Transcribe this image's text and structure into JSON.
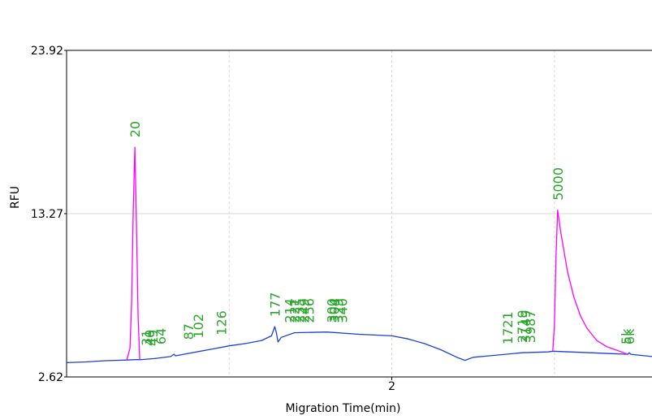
{
  "colors": {
    "baseline": "#1f3fd6",
    "peak": "#ff00ff",
    "label": "#2aa52a",
    "grid": "#d9d9d9",
    "axis": "#000000"
  },
  "chart_data": {
    "type": "line",
    "title": "",
    "xlabel": "Migration Time(min)",
    "ylabel": "RFU",
    "xlim": [
      1.0,
      2.8
    ],
    "ylim": [
      2.62,
      23.92
    ],
    "x_ticks": [
      {
        "value": 2,
        "label": "2"
      }
    ],
    "x_grid": [
      1.5,
      2.0,
      2.5
    ],
    "y_ticks": [
      {
        "value": 23.92,
        "label": "23.92"
      },
      {
        "value": 13.27,
        "label": "13.27"
      },
      {
        "value": 2.62,
        "label": "2.62"
      }
    ],
    "grid": true,
    "series": [
      {
        "color": "#1f3fd6",
        "points": [
          [
            1.0,
            3.55
          ],
          [
            1.06,
            3.6
          ],
          [
            1.12,
            3.68
          ],
          [
            1.185,
            3.72
          ],
          [
            1.21,
            3.75
          ],
          [
            1.225,
            3.75
          ],
          [
            1.235,
            3.76
          ],
          [
            1.27,
            3.82
          ],
          [
            1.32,
            3.95
          ],
          [
            1.33,
            4.1
          ],
          [
            1.335,
            4.0
          ],
          [
            1.36,
            4.1
          ],
          [
            1.45,
            4.45
          ],
          [
            1.5,
            4.65
          ],
          [
            1.55,
            4.8
          ],
          [
            1.6,
            5.0
          ],
          [
            1.63,
            5.3
          ],
          [
            1.64,
            5.9
          ],
          [
            1.645,
            5.5
          ],
          [
            1.65,
            4.9
          ],
          [
            1.66,
            5.2
          ],
          [
            1.7,
            5.5
          ],
          [
            1.8,
            5.55
          ],
          [
            1.9,
            5.4
          ],
          [
            2.0,
            5.3
          ],
          [
            2.05,
            5.1
          ],
          [
            2.1,
            4.8
          ],
          [
            2.15,
            4.4
          ],
          [
            2.2,
            3.9
          ],
          [
            2.225,
            3.7
          ],
          [
            2.25,
            3.9
          ],
          [
            2.3,
            4.0
          ],
          [
            2.4,
            4.2
          ],
          [
            2.48,
            4.25
          ],
          [
            2.495,
            4.3
          ],
          [
            2.725,
            4.1
          ],
          [
            2.73,
            4.2
          ],
          [
            2.735,
            4.1
          ],
          [
            2.8,
            3.95
          ]
        ]
      },
      {
        "color": "#ff00ff",
        "points": [
          [
            1.185,
            3.72
          ],
          [
            1.195,
            4.5
          ],
          [
            1.2,
            7.5
          ],
          [
            1.205,
            13.5
          ],
          [
            1.21,
            17.6
          ],
          [
            1.215,
            12.5
          ],
          [
            1.22,
            6.5
          ],
          [
            1.225,
            3.75
          ]
        ]
      },
      {
        "color": "#ff00ff",
        "points": [
          [
            2.495,
            4.3
          ],
          [
            2.5,
            6.0
          ],
          [
            2.505,
            10.5
          ],
          [
            2.51,
            13.5
          ],
          [
            2.52,
            12.0
          ],
          [
            2.54,
            9.5
          ],
          [
            2.56,
            7.8
          ],
          [
            2.58,
            6.6
          ],
          [
            2.6,
            5.8
          ],
          [
            2.63,
            5.0
          ],
          [
            2.66,
            4.6
          ],
          [
            2.7,
            4.3
          ],
          [
            2.725,
            4.1
          ]
        ]
      }
    ],
    "peak_labels": [
      {
        "text": "20",
        "x": 1.21,
        "y": 17.6
      },
      {
        "text": "31",
        "x": 1.245,
        "y": 4.0
      },
      {
        "text": "40",
        "x": 1.255,
        "y": 4.0
      },
      {
        "text": "49",
        "x": 1.265,
        "y": 4.0
      },
      {
        "text": "64",
        "x": 1.29,
        "y": 4.1
      },
      {
        "text": "87",
        "x": 1.375,
        "y": 4.4
      },
      {
        "text": "102",
        "x": 1.405,
        "y": 4.5
      },
      {
        "text": "126",
        "x": 1.475,
        "y": 4.7
      },
      {
        "text": "177",
        "x": 1.64,
        "y": 5.9
      },
      {
        "text": "214",
        "x": 1.685,
        "y": 5.5
      },
      {
        "text": "221",
        "x": 1.7,
        "y": 5.5
      },
      {
        "text": "235",
        "x": 1.715,
        "y": 5.5
      },
      {
        "text": "249",
        "x": 1.73,
        "y": 5.5
      },
      {
        "text": "256",
        "x": 1.745,
        "y": 5.5
      },
      {
        "text": "300",
        "x": 1.815,
        "y": 5.5
      },
      {
        "text": "304",
        "x": 1.823,
        "y": 5.5
      },
      {
        "text": "329",
        "x": 1.835,
        "y": 5.5
      },
      {
        "text": "340",
        "x": 1.847,
        "y": 5.5
      },
      {
        "text": "1721",
        "x": 2.355,
        "y": 4.1
      },
      {
        "text": "2719",
        "x": 2.4,
        "y": 4.2
      },
      {
        "text": "3149",
        "x": 2.41,
        "y": 4.2
      },
      {
        "text": "3987",
        "x": 2.425,
        "y": 4.2
      },
      {
        "text": "5000",
        "x": 2.51,
        "y": 13.5
      },
      {
        "text": "5k",
        "x": 2.72,
        "y": 4.1
      },
      {
        "text": "6k",
        "x": 2.73,
        "y": 4.1
      }
    ]
  }
}
